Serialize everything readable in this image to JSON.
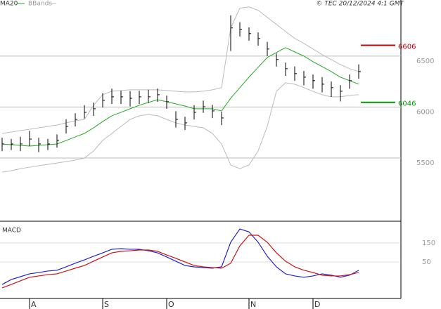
{
  "chart_data": {
    "type": "ohlc",
    "legend": [
      "MA20",
      "BBands"
    ],
    "credit": "© TEC 20/12/2024 4:1 GMT",
    "categories": [
      null,
      null,
      null,
      "A",
      null,
      null,
      null,
      null,
      null,
      null,
      null,
      "S",
      null,
      null,
      null,
      null,
      null,
      null,
      "O",
      null,
      null,
      null,
      null,
      null,
      null,
      null,
      null,
      "N",
      null,
      null,
      null,
      null,
      null,
      null,
      "D",
      null,
      null,
      null,
      null,
      null
    ],
    "high": [
      5698,
      5688,
      5708,
      5766,
      5698,
      5688,
      5732,
      5880,
      5939,
      6018,
      6043,
      6136,
      6180,
      6160,
      6156,
      6160,
      6170,
      6181,
      6112,
      5959,
      5905,
      6018,
      6063,
      6022,
      5953,
      6900,
      6832,
      6781,
      6732,
      6639,
      6526,
      6436,
      6398,
      6353,
      6319,
      6294,
      6250,
      6215,
      6319,
      6418
    ],
    "low": [
      5568,
      5578,
      5568,
      5616,
      5558,
      5578,
      5602,
      5740,
      5809,
      5888,
      5913,
      5996,
      6030,
      6030,
      6006,
      6030,
      6040,
      6051,
      5982,
      5799,
      5775,
      5878,
      5943,
      5892,
      5823,
      6550,
      6692,
      6651,
      6602,
      6499,
      6396,
      6306,
      6258,
      6213,
      6179,
      6144,
      6100,
      6055,
      6179,
      6278
    ],
    "close": [
      5638,
      5638,
      5638,
      5686,
      5638,
      5638,
      5672,
      5810,
      5879,
      5948,
      5983,
      6066,
      6100,
      6100,
      6086,
      6100,
      6100,
      6121,
      6052,
      5879,
      5845,
      5948,
      6003,
      5962,
      5893,
      6776,
      6762,
      6721,
      6672,
      6569,
      6466,
      6376,
      6328,
      6293,
      6259,
      6224,
      6190,
      6155,
      6259,
      6348
    ],
    "bar_color": "#000000",
    "series": [
      {
        "name": "MA20",
        "color": "#22aa22",
        "values": [
          5638,
          5631,
          5624,
          5617,
          5624,
          5631,
          5638,
          5672,
          5707,
          5741,
          5796,
          5858,
          5914,
          5948,
          5983,
          6017,
          6045,
          6072,
          6052,
          6031,
          6010,
          5983,
          5983,
          5983,
          5962,
          6086,
          6190,
          6293,
          6390,
          6486,
          6535,
          6583,
          6541,
          6500,
          6445,
          6397,
          6348,
          6293,
          6259,
          6224
        ]
      },
      {
        "name": "BBands",
        "color": "#bbbbbb",
        "values": [
          5741,
          5755,
          5769,
          5782,
          5796,
          5810,
          5824,
          5845,
          5865,
          5879,
          6017,
          6121,
          6155,
          6162,
          6169,
          6169,
          6169,
          6169,
          6162,
          6155,
          6148,
          6148,
          6155,
          6169,
          6190,
          6776,
          6969,
          6983,
          6949,
          6880,
          6811,
          6742,
          6673,
          6624,
          6569,
          6514,
          6466,
          6417,
          6376,
          6348
        ],
        "lower": [
          5362,
          5375,
          5396,
          5410,
          5424,
          5437,
          5451,
          5465,
          5479,
          5500,
          5569,
          5672,
          5741,
          5810,
          5879,
          5914,
          5927,
          5914,
          5879,
          5845,
          5824,
          5810,
          5796,
          5741,
          5638,
          5431,
          5396,
          5431,
          5569,
          5810,
          6155,
          6238,
          6224,
          6190,
          6155,
          6121,
          6100,
          6100,
          6114,
          6121
        ]
      }
    ],
    "levels": [
      {
        "value": 6606,
        "color": "#cc0000"
      },
      {
        "value": 6046,
        "color": "#009900"
      }
    ],
    "ylim": [
      4880,
      7050
    ],
    "yticks": [
      5500,
      6000,
      6500
    ],
    "macd": {
      "title": "MACD",
      "ylim": [
        -143,
        254
      ],
      "yticks": [
        50,
        150
      ],
      "series": [
        {
          "color": "#2222cc",
          "values": [
            -69,
            -43,
            -28,
            -13,
            -6,
            2,
            6,
            24,
            43,
            61,
            80,
            98,
            117,
            120,
            117,
            117,
            109,
            98,
            76,
            54,
            31,
            24,
            20,
            17,
            24,
            154,
            224,
            209,
            154,
            80,
            24,
            -13,
            -24,
            -31,
            -24,
            -13,
            -20,
            -31,
            -20,
            6
          ]
        },
        {
          "color": "#cc1111",
          "values": [
            -87,
            -69,
            -50,
            -31,
            -24,
            -17,
            -13,
            2,
            17,
            31,
            54,
            76,
            98,
            106,
            109,
            113,
            113,
            106,
            87,
            69,
            50,
            31,
            24,
            20,
            17,
            43,
            135,
            191,
            191,
            154,
            98,
            54,
            24,
            6,
            -6,
            -20,
            -24,
            -24,
            -17,
            -6
          ]
        }
      ]
    }
  }
}
